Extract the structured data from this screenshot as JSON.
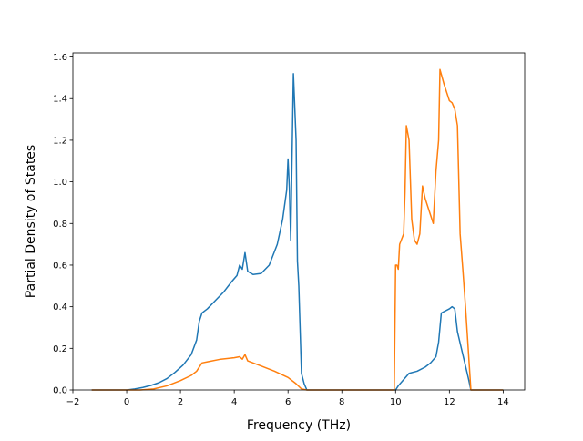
{
  "chart_data": {
    "type": "line",
    "title": "",
    "xlabel": "Frequency (THz)",
    "ylabel": "Partial Density of States",
    "xlim": [
      -2,
      14.8
    ],
    "ylim": [
      0,
      1.62
    ],
    "xticks": [
      -2,
      0,
      2,
      4,
      6,
      8,
      10,
      12,
      14
    ],
    "yticks": [
      0.0,
      0.2,
      0.4,
      0.6,
      0.8,
      1.0,
      1.2,
      1.4,
      1.6
    ],
    "xtick_labels": [
      "−2",
      "0",
      "2",
      "4",
      "6",
      "8",
      "10",
      "12",
      "14"
    ],
    "ytick_labels": [
      "0.0",
      "0.2",
      "0.4",
      "0.6",
      "0.8",
      "1.0",
      "1.2",
      "1.4",
      "1.6"
    ],
    "grid": false,
    "legend": "none",
    "series": [
      {
        "color": "#1f77b4",
        "points": [
          [
            -1.3,
            0.0
          ],
          [
            0.0,
            0.0
          ],
          [
            0.3,
            0.005
          ],
          [
            0.6,
            0.012
          ],
          [
            0.9,
            0.022
          ],
          [
            1.2,
            0.035
          ],
          [
            1.5,
            0.055
          ],
          [
            1.8,
            0.085
          ],
          [
            2.1,
            0.12
          ],
          [
            2.4,
            0.17
          ],
          [
            2.6,
            0.24
          ],
          [
            2.7,
            0.33
          ],
          [
            2.8,
            0.37
          ],
          [
            2.9,
            0.38
          ],
          [
            3.0,
            0.39
          ],
          [
            3.3,
            0.43
          ],
          [
            3.6,
            0.47
          ],
          [
            3.9,
            0.52
          ],
          [
            4.1,
            0.55
          ],
          [
            4.2,
            0.6
          ],
          [
            4.3,
            0.58
          ],
          [
            4.4,
            0.66
          ],
          [
            4.5,
            0.57
          ],
          [
            4.7,
            0.555
          ],
          [
            5.0,
            0.56
          ],
          [
            5.3,
            0.6
          ],
          [
            5.6,
            0.7
          ],
          [
            5.8,
            0.82
          ],
          [
            5.95,
            0.96
          ],
          [
            6.0,
            1.11
          ],
          [
            6.05,
            0.97
          ],
          [
            6.1,
            0.72
          ],
          [
            6.2,
            1.52
          ],
          [
            6.3,
            1.2
          ],
          [
            6.35,
            0.62
          ],
          [
            6.4,
            0.5
          ],
          [
            6.5,
            0.08
          ],
          [
            6.6,
            0.03
          ],
          [
            6.7,
            0.0
          ],
          [
            10.0,
            0.0
          ],
          [
            10.1,
            0.02
          ],
          [
            10.3,
            0.05
          ],
          [
            10.5,
            0.08
          ],
          [
            10.8,
            0.09
          ],
          [
            11.1,
            0.11
          ],
          [
            11.3,
            0.13
          ],
          [
            11.5,
            0.16
          ],
          [
            11.6,
            0.23
          ],
          [
            11.7,
            0.37
          ],
          [
            12.0,
            0.39
          ],
          [
            12.1,
            0.4
          ],
          [
            12.2,
            0.39
          ],
          [
            12.3,
            0.28
          ],
          [
            12.5,
            0.17
          ],
          [
            12.7,
            0.06
          ],
          [
            12.8,
            0.0
          ],
          [
            14.0,
            0.0
          ]
        ]
      },
      {
        "color": "#ff7f0e",
        "points": [
          [
            -1.3,
            0.0
          ],
          [
            0.5,
            0.0
          ],
          [
            1.0,
            0.005
          ],
          [
            1.5,
            0.02
          ],
          [
            2.0,
            0.045
          ],
          [
            2.4,
            0.07
          ],
          [
            2.6,
            0.09
          ],
          [
            2.8,
            0.13
          ],
          [
            3.0,
            0.135
          ],
          [
            3.5,
            0.148
          ],
          [
            4.0,
            0.155
          ],
          [
            4.2,
            0.16
          ],
          [
            4.3,
            0.148
          ],
          [
            4.4,
            0.17
          ],
          [
            4.5,
            0.14
          ],
          [
            5.0,
            0.115
          ],
          [
            5.5,
            0.09
          ],
          [
            6.0,
            0.06
          ],
          [
            6.3,
            0.03
          ],
          [
            6.5,
            0.005
          ],
          [
            6.7,
            0.0
          ],
          [
            9.95,
            0.0
          ],
          [
            10.0,
            0.6
          ],
          [
            10.05,
            0.6
          ],
          [
            10.1,
            0.58
          ],
          [
            10.15,
            0.7
          ],
          [
            10.3,
            0.75
          ],
          [
            10.35,
            0.95
          ],
          [
            10.4,
            1.27
          ],
          [
            10.5,
            1.2
          ],
          [
            10.6,
            0.82
          ],
          [
            10.7,
            0.72
          ],
          [
            10.8,
            0.7
          ],
          [
            10.9,
            0.75
          ],
          [
            11.0,
            0.98
          ],
          [
            11.1,
            0.92
          ],
          [
            11.2,
            0.88
          ],
          [
            11.3,
            0.84
          ],
          [
            11.4,
            0.8
          ],
          [
            11.5,
            1.05
          ],
          [
            11.6,
            1.2
          ],
          [
            11.65,
            1.54
          ],
          [
            11.8,
            1.47
          ],
          [
            11.9,
            1.43
          ],
          [
            12.0,
            1.39
          ],
          [
            12.1,
            1.38
          ],
          [
            12.2,
            1.35
          ],
          [
            12.3,
            1.27
          ],
          [
            12.4,
            0.75
          ],
          [
            12.5,
            0.58
          ],
          [
            12.6,
            0.4
          ],
          [
            12.7,
            0.2
          ],
          [
            12.8,
            0.0
          ],
          [
            14.0,
            0.0
          ]
        ]
      }
    ]
  }
}
